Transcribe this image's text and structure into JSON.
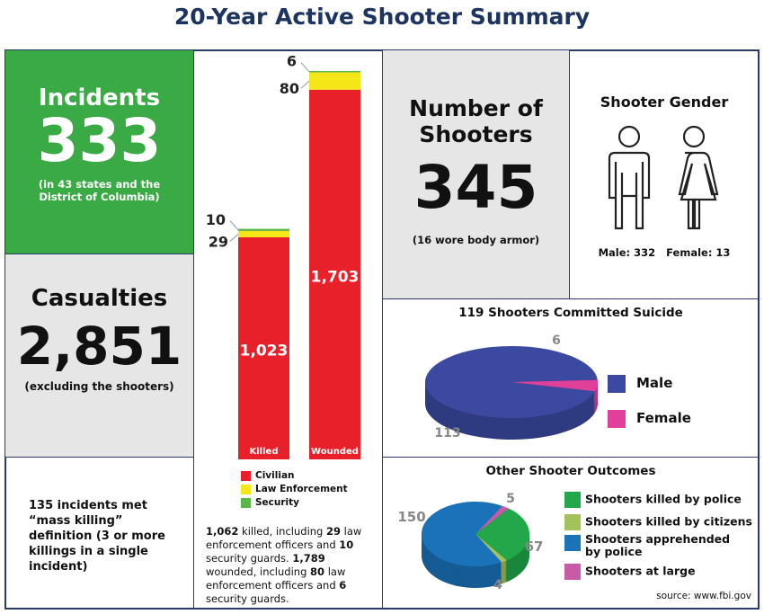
{
  "title": "20-Year Active Shooter Summary",
  "incidents": {
    "label": "Incidents",
    "value": "333",
    "note": "(in 43 states and the District of Columbia)"
  },
  "casualties": {
    "label": "Casualties",
    "value": "2,851",
    "note": "(excluding the shooters)"
  },
  "mass_killing": "135 incidents met “mass killing” definition (3 or more killings in a single incident)",
  "shooters": {
    "label": "Number of Shooters",
    "value": "345",
    "note": "(16 wore body armor)"
  },
  "gender": {
    "title": "Shooter Gender",
    "male": "Male: 332",
    "female": "Female: 13"
  },
  "casualty_text": [
    "1,062",
    " killed, including ",
    "29",
    " law enforcement officers and ",
    "10",
    " security guards. ",
    "1,789",
    " wounded, including ",
    "80",
    " law enforcement officers and ",
    "6",
    " security guards."
  ],
  "source": "source: www.fbi.gov",
  "colors": {
    "green": "#3aaa45",
    "gray": "#e6e6e6",
    "navy": "#1d3461",
    "civilian": "#e8202a",
    "law": "#f5e61a",
    "security": "#5bb648"
  },
  "chart_data": [
    {
      "type": "bar",
      "stacked": true,
      "categories": [
        "Killed",
        "Wounded"
      ],
      "series": [
        {
          "name": "Civilian",
          "values": [
            1023,
            1703
          ],
          "color": "#e8202a"
        },
        {
          "name": "Law Enforcement",
          "values": [
            29,
            80
          ],
          "color": "#f5e61a"
        },
        {
          "name": "Security",
          "values": [
            10,
            6
          ],
          "color": "#5bb648"
        }
      ],
      "data_labels": {
        "Killed": [
          "1,023",
          "29",
          "10"
        ],
        "Wounded": [
          "1,703",
          "80",
          "6"
        ]
      }
    },
    {
      "type": "pie",
      "title": "119 Shooters Committed Suicide",
      "slices": [
        {
          "name": "Male",
          "value": 113,
          "label": "113",
          "color": "#3b4aa0"
        },
        {
          "name": "Female",
          "value": 6,
          "label": "6",
          "color": "#e0409a"
        }
      ],
      "legend": "right"
    },
    {
      "type": "pie",
      "title": "Other Shooter Outcomes",
      "slices": [
        {
          "name": "Shooters at large",
          "value": 5,
          "label": "5",
          "color": "#c85aa8"
        },
        {
          "name": "Shooters killed by police",
          "value": 67,
          "label": "67",
          "color": "#22a84a"
        },
        {
          "name": "Shooters killed by citizens",
          "value": 4,
          "label": "4",
          "color": "#a3c35a"
        },
        {
          "name": "Shooters apprehended by police",
          "value": 150,
          "label": "150",
          "color": "#1a72b9"
        }
      ],
      "legend": "right"
    }
  ]
}
